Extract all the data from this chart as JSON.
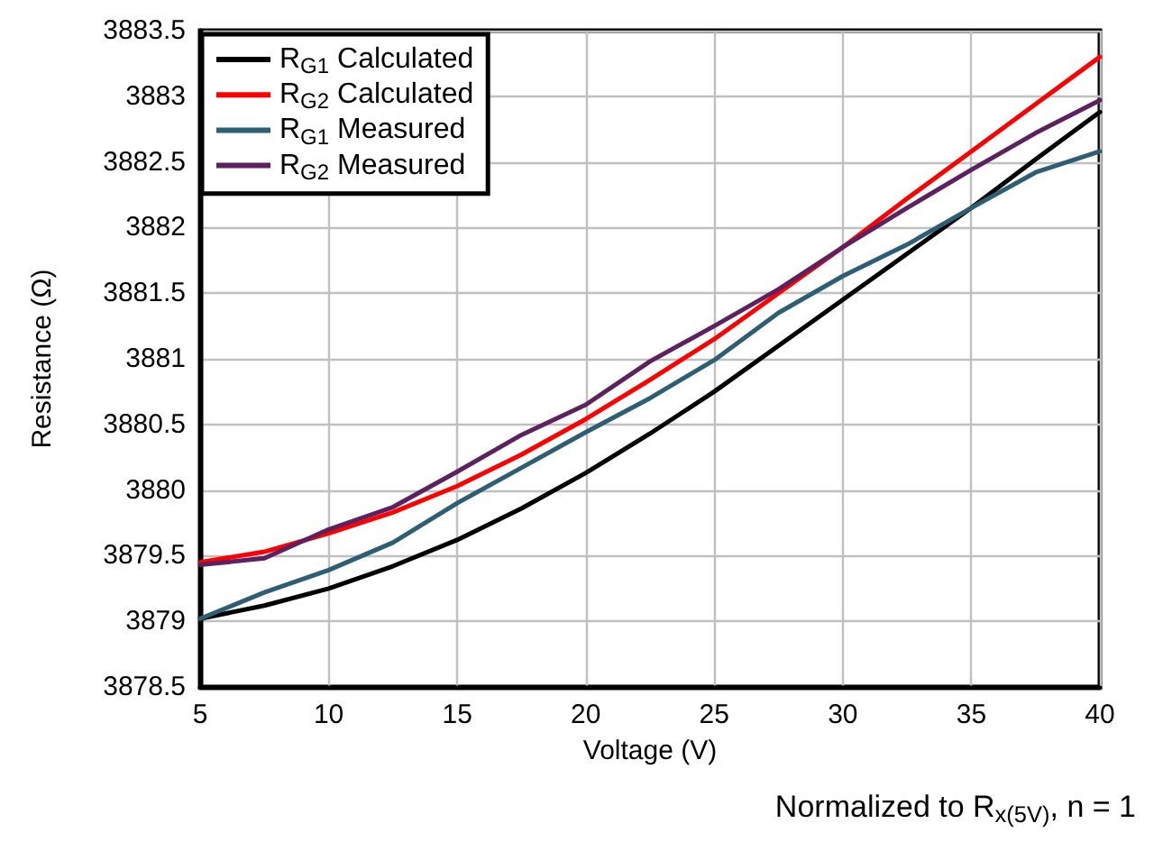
{
  "chart_data": {
    "type": "line",
    "xlabel": "Voltage (V)",
    "ylabel": "Resistance (Ω)",
    "x": [
      5,
      7.5,
      10,
      12.5,
      15,
      17.5,
      20,
      22.5,
      25,
      27.5,
      30,
      32.5,
      35,
      37.5,
      40
    ],
    "series": [
      {
        "name": "R$_{G1}$ Calculated",
        "color": "#000000",
        "values": [
          3879.02,
          3879.12,
          3879.25,
          3879.42,
          3879.62,
          3879.86,
          3880.13,
          3880.43,
          3880.75,
          3881.1,
          3881.45,
          3881.8,
          3882.15,
          3882.52,
          3882.88
        ]
      },
      {
        "name": "R$_{G2}$ Calculated",
        "color": "#ff0000",
        "values": [
          3879.45,
          3879.53,
          3879.67,
          3879.83,
          3880.03,
          3880.27,
          3880.54,
          3880.84,
          3881.15,
          3881.5,
          3881.85,
          3882.22,
          3882.58,
          3882.94,
          3883.3
        ]
      },
      {
        "name": "R$_{G1}$ Measured",
        "color": "#2e5e73",
        "values": [
          3879.02,
          3879.22,
          3879.39,
          3879.6,
          3879.9,
          3880.17,
          3880.44,
          3880.7,
          3880.99,
          3881.35,
          3881.63,
          3881.87,
          3882.15,
          3882.42,
          3882.58
        ]
      },
      {
        "name": "R$_{G2}$ Measured",
        "color": "#5e2160",
        "values": [
          3879.43,
          3879.48,
          3879.7,
          3879.87,
          3880.14,
          3880.42,
          3880.65,
          3880.98,
          3881.25,
          3881.53,
          3881.85,
          3882.15,
          3882.44,
          3882.72,
          3882.97
        ]
      }
    ],
    "xlim": [
      5,
      40
    ],
    "xticks": [
      5,
      10,
      15,
      20,
      25,
      30,
      35,
      40
    ],
    "ylim": [
      3878.5,
      3883.5
    ],
    "yticks": [
      3878.5,
      3879,
      3879.5,
      3880,
      3880.5,
      3881,
      3881.5,
      3882,
      3882.5,
      3883,
      3883.5
    ],
    "grid": true,
    "legend": "top left",
    "marker": "none",
    "line_style": "solid",
    "annotations": [
      "Normalized to R$_{x(5V)}$, n = 1"
    ]
  }
}
